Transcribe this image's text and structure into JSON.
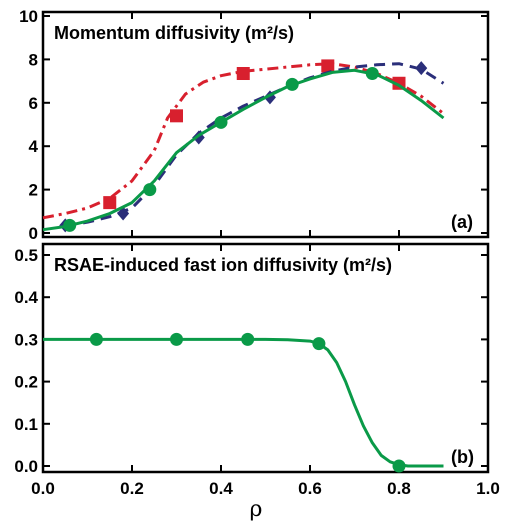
{
  "colors": {
    "green": "#0a9a48",
    "red": "#d8202e",
    "navy": "#2b2f7a",
    "axis": "#000000"
  },
  "xlabel": "ρ",
  "panels": [
    {
      "id": "a",
      "title": "Momentum diffusivity (m²/s)",
      "panel_label": "(a)",
      "ylim": [
        0,
        10
      ],
      "yticks": [
        "0",
        "2",
        "4",
        "6",
        "8",
        "10"
      ],
      "ytick_values": [
        0,
        2,
        4,
        6,
        8,
        10
      ]
    },
    {
      "id": "b",
      "title": "RSAE-induced fast ion diffusivity (m²/s)",
      "panel_label": "(b)",
      "ylim": [
        0,
        0.5
      ],
      "yticks": [
        "0.0",
        "0.1",
        "0.2",
        "0.3",
        "0.4",
        "0.5"
      ],
      "ytick_values": [
        0,
        0.1,
        0.2,
        0.3,
        0.4,
        0.5
      ]
    }
  ],
  "xticks": [
    "0.0",
    "0.2",
    "0.4",
    "0.6",
    "0.8",
    "1.0"
  ],
  "xtick_values": [
    0,
    0.2,
    0.4,
    0.6,
    0.8,
    1.0
  ],
  "chart_data": [
    {
      "type": "line",
      "title": "Momentum diffusivity (m²/s)",
      "xlabel": "ρ",
      "ylabel": "",
      "xlim": [
        0,
        1.0
      ],
      "ylim": [
        0,
        10
      ],
      "series": [
        {
          "style": "dash-dot",
          "color": "#d8202e",
          "marker": "square",
          "x": [
            0.0,
            0.05,
            0.1,
            0.15,
            0.2,
            0.25,
            0.28,
            0.32,
            0.36,
            0.4,
            0.45,
            0.5,
            0.55,
            0.6,
            0.65,
            0.7,
            0.75,
            0.8,
            0.85,
            0.9
          ],
          "y": [
            0.7,
            0.9,
            1.15,
            1.6,
            2.4,
            3.8,
            5.3,
            6.4,
            6.95,
            7.25,
            7.45,
            7.55,
            7.65,
            7.75,
            7.8,
            7.65,
            7.35,
            6.9,
            6.3,
            5.5
          ],
          "markers_x": [
            0.15,
            0.3,
            0.45,
            0.64,
            0.8
          ],
          "markers_y": [
            1.4,
            5.4,
            7.35,
            7.7,
            6.9
          ]
        },
        {
          "style": "dashed",
          "color": "#2b2f7a",
          "marker": "diamond",
          "x": [
            0.05,
            0.1,
            0.15,
            0.2,
            0.25,
            0.3,
            0.35,
            0.4,
            0.45,
            0.5,
            0.55,
            0.6,
            0.65,
            0.7,
            0.75,
            0.8,
            0.85,
            0.9
          ],
          "y": [
            0.35,
            0.5,
            0.75,
            1.15,
            2.2,
            3.6,
            4.6,
            5.3,
            5.85,
            6.3,
            6.75,
            7.15,
            7.45,
            7.65,
            7.75,
            7.8,
            7.55,
            6.9
          ],
          "markers_x": [
            0.05,
            0.18,
            0.35,
            0.51,
            0.85
          ],
          "markers_y": [
            0.35,
            0.9,
            4.4,
            6.25,
            7.6
          ]
        },
        {
          "style": "solid",
          "color": "#0a9a48",
          "marker": "circle",
          "x": [
            0.0,
            0.05,
            0.1,
            0.15,
            0.2,
            0.25,
            0.3,
            0.35,
            0.4,
            0.45,
            0.5,
            0.55,
            0.6,
            0.65,
            0.7,
            0.75,
            0.8,
            0.85,
            0.9
          ],
          "y": [
            0.15,
            0.3,
            0.55,
            0.9,
            1.4,
            2.4,
            3.7,
            4.5,
            5.1,
            5.7,
            6.25,
            6.75,
            7.1,
            7.4,
            7.5,
            7.3,
            6.8,
            6.1,
            5.3
          ],
          "markers_x": [
            0.06,
            0.24,
            0.4,
            0.56,
            0.74
          ],
          "markers_y": [
            0.35,
            2.0,
            5.1,
            6.85,
            7.35
          ]
        }
      ]
    },
    {
      "type": "line",
      "title": "RSAE-induced fast ion diffusivity (m²/s)",
      "xlabel": "ρ",
      "ylabel": "",
      "xlim": [
        0,
        1.0
      ],
      "ylim": [
        0,
        0.5
      ],
      "series": [
        {
          "style": "solid",
          "color": "#0a9a48",
          "marker": "circle",
          "x": [
            0.0,
            0.1,
            0.2,
            0.3,
            0.4,
            0.5,
            0.55,
            0.6,
            0.62,
            0.64,
            0.66,
            0.68,
            0.7,
            0.72,
            0.74,
            0.76,
            0.78,
            0.8,
            0.82,
            0.85,
            0.9
          ],
          "y": [
            0.3,
            0.3,
            0.3,
            0.3,
            0.3,
            0.3,
            0.299,
            0.296,
            0.29,
            0.275,
            0.245,
            0.2,
            0.145,
            0.095,
            0.055,
            0.025,
            0.01,
            0.003,
            0.0,
            0.0,
            0.0
          ],
          "markers_x": [
            0.12,
            0.3,
            0.46,
            0.62,
            0.8
          ],
          "markers_y": [
            0.3,
            0.3,
            0.3,
            0.29,
            0.0
          ]
        }
      ]
    }
  ]
}
